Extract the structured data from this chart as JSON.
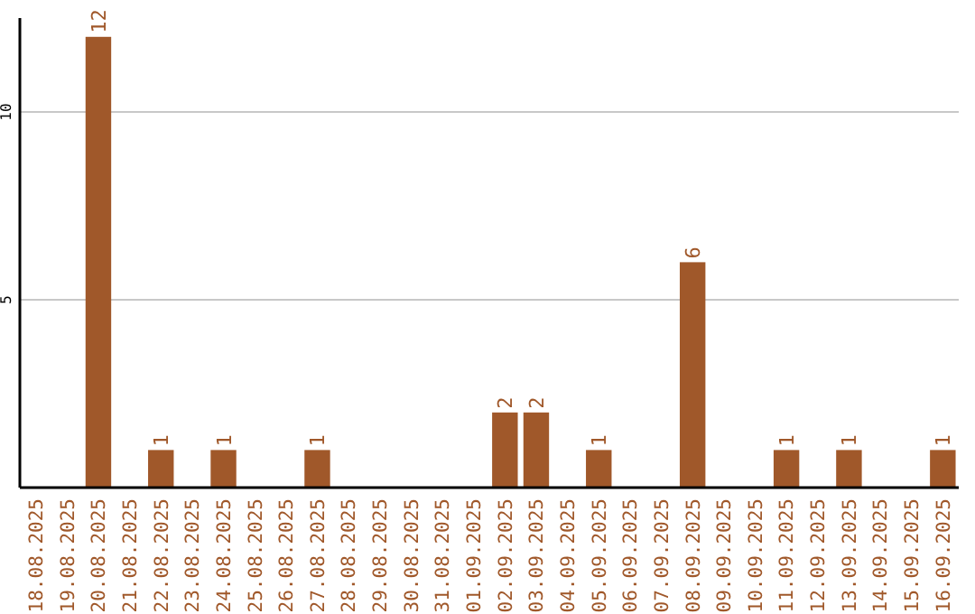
{
  "chart_data": {
    "type": "bar",
    "categories": [
      "18.08.2025",
      "19.08.2025",
      "20.08.2025",
      "21.08.2025",
      "22.08.2025",
      "23.08.2025",
      "24.08.2025",
      "25.08.2025",
      "26.08.2025",
      "27.08.2025",
      "28.08.2025",
      "29.08.2025",
      "30.08.2025",
      "31.08.2025",
      "01.09.2025",
      "02.09.2025",
      "03.09.2025",
      "04.09.2025",
      "05.09.2025",
      "06.09.2025",
      "07.09.2025",
      "08.09.2025",
      "09.09.2025",
      "10.09.2025",
      "11.09.2025",
      "12.09.2025",
      "13.09.2025",
      "14.09.2025",
      "15.09.2025",
      "16.09.2025"
    ],
    "values": [
      0,
      0,
      12,
      0,
      1,
      0,
      1,
      0,
      0,
      1,
      0,
      0,
      0,
      0,
      0,
      2,
      2,
      0,
      1,
      0,
      0,
      6,
      0,
      0,
      1,
      0,
      1,
      0,
      0,
      1
    ],
    "value_labels": [
      null,
      null,
      "12",
      null,
      "1",
      null,
      "1",
      null,
      null,
      "1",
      null,
      null,
      null,
      null,
      null,
      "2",
      "2",
      null,
      "1",
      null,
      null,
      "6",
      null,
      null,
      "1",
      null,
      "1",
      null,
      null,
      "1"
    ],
    "color": "#a0582a",
    "ylim": [
      0,
      12.5
    ],
    "yticks": [
      5,
      10
    ],
    "grid": "y"
  }
}
